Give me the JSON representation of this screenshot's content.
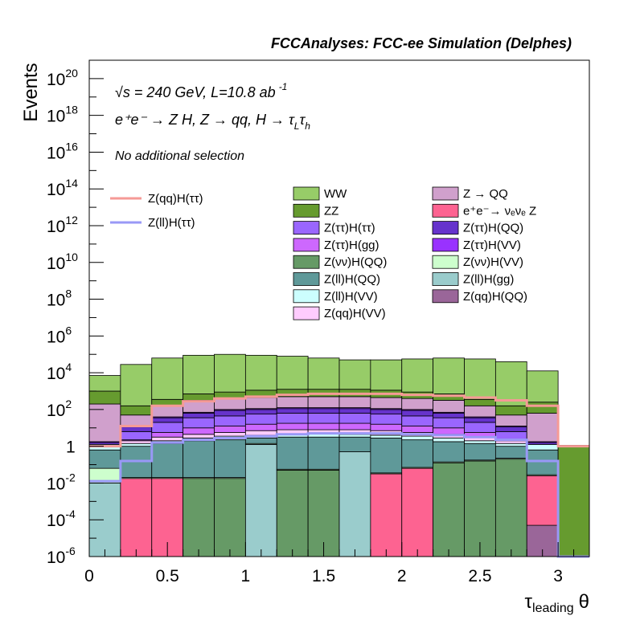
{
  "chart_data": {
    "type": "bar",
    "title": "FCCAnalyses: FCC-ee Simulation (Delphes)",
    "annotations": {
      "energy": "√s = 240 GeV, L=10.8 ab",
      "energy_exp": "-1",
      "process_main": "e⁺e⁻ → Z H, Z → qq, H → τ",
      "process_sub1": "L",
      "process_mid": "τ",
      "process_sub2": "h",
      "selection": "No additional selection"
    },
    "xlabel_main": "τ",
    "xlabel_sub": "leading",
    "xlabel_tail": "θ",
    "ylabel": "Events",
    "xlim": [
      0,
      3.2
    ],
    "ylim_log10": [
      -6,
      21
    ],
    "log_y": true,
    "x_ticks": [
      "0",
      "0.5",
      "1",
      "1.5",
      "2",
      "2.5",
      "3"
    ],
    "y_ticks": [
      {
        "mant": "10",
        "exp": "-6",
        "v": -6
      },
      {
        "mant": "10",
        "exp": "-4",
        "v": -4
      },
      {
        "mant": "10",
        "exp": "-2",
        "v": -2
      },
      {
        "mant": "1",
        "exp": "",
        "v": 0
      },
      {
        "mant": "10",
        "exp": "2",
        "v": 2
      },
      {
        "mant": "10",
        "exp": "4",
        "v": 4
      },
      {
        "mant": "10",
        "exp": "6",
        "v": 6
      },
      {
        "mant": "10",
        "exp": "8",
        "v": 8
      },
      {
        "mant": "10",
        "exp": "10",
        "v": 10
      },
      {
        "mant": "10",
        "exp": "12",
        "v": 12
      },
      {
        "mant": "10",
        "exp": "14",
        "v": 14
      },
      {
        "mant": "10",
        "exp": "16",
        "v": 16
      },
      {
        "mant": "10",
        "exp": "18",
        "v": 18
      },
      {
        "mant": "10",
        "exp": "20",
        "v": 20
      }
    ],
    "bin_edges": [
      0,
      0.2,
      0.4,
      0.6,
      0.8,
      1.0,
      1.2,
      1.4,
      1.6,
      1.8,
      2.0,
      2.2,
      2.4,
      2.6,
      2.8,
      3.0,
      3.2
    ],
    "stack_order_bottom_to_top": [
      "Z(qq)H(QQ)",
      "Z(ll)H(gg)",
      "Z(νν)H(QQ)",
      "e⁺e⁻→ νₑνₑ Z",
      "Z(νν)H(VV)",
      "Z(ll)H(QQ)",
      "Z(ll)H(VV)",
      "Z(qq)H(VV)",
      "Z(ττ)H(gg)",
      "Z(ττ)H(ττ)",
      "Z(ττ)H(QQ)",
      "Z(ττ)H(VV)",
      "Z → QQ",
      "ZZ",
      "WW"
    ],
    "stack_cumulative_tops_log10": [
      {
        "x0": 0.0,
        "x1": 0.2,
        "tops": [
          -6,
          -2.0,
          -2.0,
          -2.0,
          -1.2,
          -0.2,
          0.1,
          0.1,
          0.1,
          0.1,
          0.2,
          0.25,
          2.3,
          3.0,
          3.85
        ]
      },
      {
        "x0": 0.2,
        "x1": 0.4,
        "tops": [
          -6,
          -6,
          -6,
          -1.75,
          -1.7,
          0.0,
          0.15,
          0.3,
          0.35,
          0.8,
          1.05,
          1.1,
          1.7,
          2.2,
          4.45
        ]
      },
      {
        "x0": 0.4,
        "x1": 0.6,
        "tops": [
          -6,
          -6,
          -6,
          -1.75,
          -1.7,
          0.15,
          0.3,
          0.5,
          0.75,
          1.3,
          1.55,
          1.6,
          2.2,
          2.55,
          4.8
        ]
      },
      {
        "x0": 0.6,
        "x1": 0.8,
        "tops": [
          -6,
          -6,
          -1.75,
          -1.75,
          -1.7,
          0.3,
          0.45,
          0.65,
          1.0,
          1.55,
          1.8,
          1.85,
          2.5,
          2.85,
          4.95
        ]
      },
      {
        "x0": 0.8,
        "x1": 1.0,
        "tops": [
          -6,
          -6,
          -1.75,
          -1.75,
          -1.7,
          0.35,
          0.55,
          0.75,
          1.1,
          1.65,
          1.95,
          2.0,
          2.6,
          2.95,
          5.0
        ]
      },
      {
        "x0": 1.0,
        "x1": 1.2,
        "tops": [
          -6,
          0.1,
          0.1,
          0.1,
          0.15,
          0.45,
          0.6,
          0.85,
          1.2,
          1.75,
          2.0,
          2.05,
          2.65,
          3.05,
          4.95
        ]
      },
      {
        "x0": 1.2,
        "x1": 1.4,
        "tops": [
          -6,
          -6,
          -1.3,
          -1.3,
          -1.25,
          0.5,
          0.65,
          0.9,
          1.25,
          1.8,
          2.05,
          2.1,
          2.7,
          3.1,
          4.9
        ]
      },
      {
        "x0": 1.4,
        "x1": 1.6,
        "tops": [
          -6,
          -6,
          -1.3,
          -1.3,
          -1.25,
          0.5,
          0.7,
          0.9,
          1.25,
          1.8,
          2.05,
          2.1,
          2.7,
          3.1,
          4.8
        ]
      },
      {
        "x0": 1.6,
        "x1": 1.8,
        "tops": [
          -6,
          -0.3,
          -3.9,
          -3.9,
          -0.3,
          0.5,
          0.65,
          0.9,
          1.25,
          1.8,
          2.05,
          2.1,
          2.7,
          3.1,
          4.7
        ]
      },
      {
        "x0": 1.8,
        "x1": 2.0,
        "tops": [
          -6,
          -6,
          -6,
          -1.5,
          -1.45,
          0.45,
          0.6,
          0.85,
          1.2,
          1.75,
          2.0,
          2.05,
          2.65,
          3.05,
          4.7
        ]
      },
      {
        "x0": 2.0,
        "x1": 2.2,
        "tops": [
          -6,
          -6,
          -6,
          -1.2,
          -1.15,
          0.35,
          0.55,
          0.75,
          1.1,
          1.65,
          1.95,
          2.0,
          2.6,
          2.95,
          4.75
        ]
      },
      {
        "x0": 2.2,
        "x1": 2.4,
        "tops": [
          -6,
          -6,
          -0.9,
          -0.9,
          -0.85,
          0.25,
          0.45,
          0.65,
          1.0,
          1.55,
          1.8,
          1.85,
          2.5,
          2.85,
          4.8
        ]
      },
      {
        "x0": 2.4,
        "x1": 2.6,
        "tops": [
          -6,
          -6,
          -0.8,
          -0.8,
          -0.75,
          0.15,
          0.3,
          0.5,
          0.75,
          1.3,
          1.55,
          1.6,
          2.2,
          2.55,
          4.75
        ]
      },
      {
        "x0": 2.6,
        "x1": 2.8,
        "tops": [
          -6,
          -6,
          -0.7,
          -0.7,
          -0.65,
          0.0,
          0.15,
          0.3,
          0.35,
          0.8,
          1.05,
          1.1,
          1.7,
          2.2,
          4.6
        ]
      },
      {
        "x0": 2.8,
        "x1": 3.0,
        "tops": [
          -4.3,
          -4.3,
          -4.3,
          -1.6,
          -1.55,
          -0.2,
          0.1,
          0.1,
          0.1,
          0.1,
          0.2,
          0.25,
          1.8,
          2.4,
          4.1
        ]
      },
      {
        "x0": 3.0,
        "x1": 3.2,
        "tops": [
          -6,
          -6,
          -6,
          -6,
          -6,
          -6,
          -6,
          -6,
          -6,
          -6,
          -6,
          -6,
          -6,
          0.05,
          0.05
        ]
      }
    ],
    "overlay_lines": [
      {
        "name": "Z(qq)H(ττ)",
        "color": "#f59a96",
        "bins_log10": [
          0.0,
          1.1,
          2.2,
          2.45,
          2.6,
          2.7,
          2.8,
          2.85,
          2.85,
          2.85,
          2.8,
          2.75,
          2.65,
          2.5,
          2.2,
          0.0
        ]
      },
      {
        "name": "Z(ll)H(ττ)",
        "color": "#9998f6",
        "bins_log10": [
          -1.9,
          -0.8,
          0.2,
          0.35,
          0.45,
          0.55,
          0.65,
          0.7,
          0.7,
          0.7,
          0.65,
          0.6,
          0.5,
          0.35,
          -0.8,
          -6.0
        ]
      }
    ],
    "legend": {
      "placement": "top-center",
      "lines": [
        {
          "label": "Z(qq)H(ττ)",
          "color": "#f59a96"
        },
        {
          "label": "Z(ll)H(ττ)",
          "color": "#9998f6"
        }
      ],
      "boxes": [
        {
          "label": "WW",
          "color": "#97cc68"
        },
        {
          "label": "Z → QQ",
          "color": "#d0a0cc"
        },
        {
          "label": "ZZ",
          "color": "#669b2f"
        },
        {
          "label": "e⁺e⁻→ νₑνₑ Z",
          "color": "#fd6391"
        },
        {
          "label": "Z(ττ)H(ττ)",
          "color": "#9a66fe"
        },
        {
          "label": "Z(ττ)H(QQ)",
          "color": "#6633cc"
        },
        {
          "label": "Z(ττ)H(gg)",
          "color": "#cd68fe"
        },
        {
          "label": "Z(ττ)H(VV)",
          "color": "#9932ff"
        },
        {
          "label": "Z(νν)H(QQ)",
          "color": "#669a66"
        },
        {
          "label": "Z(νν)H(VV)",
          "color": "#cdfecd"
        },
        {
          "label": "Z(ll)H(QQ)",
          "color": "#5f9999"
        },
        {
          "label": "Z(ll)H(gg)",
          "color": "#9acccc"
        },
        {
          "label": "Z(ll)H(VV)",
          "color": "#ccfefe"
        },
        {
          "label": "Z(qq)H(QQ)",
          "color": "#9a6699"
        },
        {
          "label": "Z(qq)H(VV)",
          "color": "#ffccfe"
        }
      ]
    }
  }
}
